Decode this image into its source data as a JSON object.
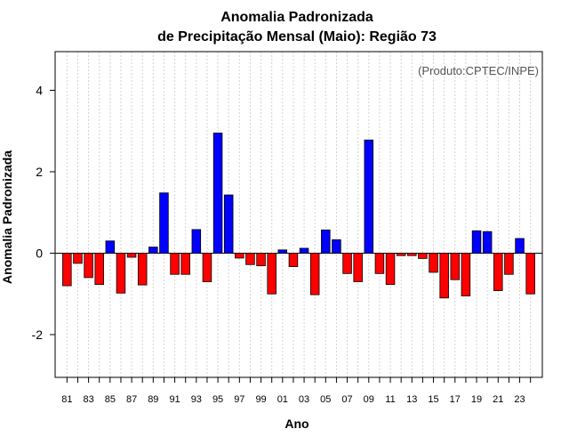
{
  "chart_data": {
    "type": "bar",
    "title_line1": "Anomalia Padronizada",
    "title_line2": "de Precipitação Mensal (Maio): Região 73",
    "credit": "(Produto:CPTEC/INPE)",
    "xlabel": "Ano",
    "ylabel": "Anomalia Padronizada",
    "ylim": [
      -3.05,
      4.95
    ],
    "yticks": [
      -2,
      0,
      2,
      4
    ],
    "ytick_labels": [
      "-2",
      "0",
      "2",
      "4"
    ],
    "categories": [
      "81",
      "82",
      "83",
      "84",
      "85",
      "86",
      "87",
      "88",
      "89",
      "90",
      "91",
      "92",
      "93",
      "94",
      "95",
      "96",
      "97",
      "98",
      "99",
      "00",
      "01",
      "02",
      "03",
      "04",
      "05",
      "06",
      "07",
      "08",
      "09",
      "10",
      "11",
      "12",
      "13",
      "14",
      "15",
      "16",
      "17",
      "18",
      "19",
      "20",
      "21",
      "22",
      "23",
      "24"
    ],
    "xtick_labels": [
      "81",
      "83",
      "85",
      "87",
      "89",
      "91",
      "93",
      "95",
      "97",
      "99",
      "01",
      "03",
      "05",
      "07",
      "09",
      "11",
      "13",
      "15",
      "17",
      "19",
      "21",
      "23"
    ],
    "values": [
      -0.8,
      -0.25,
      -0.6,
      -0.77,
      0.3,
      -0.98,
      -0.1,
      -0.78,
      0.15,
      1.48,
      -0.52,
      -0.52,
      0.58,
      -0.7,
      2.95,
      1.43,
      -0.12,
      -0.28,
      -0.31,
      -1.0,
      0.08,
      -0.33,
      0.12,
      -1.02,
      0.57,
      0.33,
      -0.5,
      -0.7,
      2.78,
      -0.5,
      -0.77,
      -0.06,
      -0.06,
      -0.13,
      -0.47,
      -1.1,
      -0.65,
      -1.05,
      0.55,
      0.53,
      -0.92,
      -0.52,
      0.36,
      -1.0
    ],
    "colors": {
      "positive": "#0000ff",
      "negative": "#ff0000",
      "outline": "#000000",
      "grid": "#d3d3d3",
      "zero_line": "#000000"
    }
  }
}
